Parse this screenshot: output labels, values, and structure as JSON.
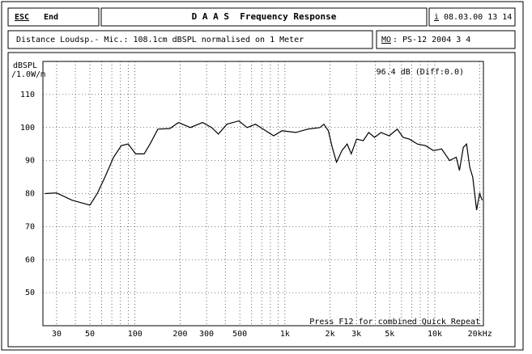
{
  "ui": {
    "esc": "ESC",
    "end": "End",
    "title": "D A A S  Frequency Response",
    "info_key": "i",
    "datetime": "08.03.00 13 14",
    "note": "Distance Loudsp.- Mic.: 108.1cm dBSPL normalised on 1 Meter",
    "model_key": "MO",
    "model": ": PS-12 2004 3 4"
  },
  "chart_data": {
    "type": "line",
    "log_x": true,
    "y_label_1": "dBSPL",
    "y_label_2": "/1.0W/m",
    "annotation": "96.4 dB (Diff:0.0)",
    "footer": "Press F12 for combined Quick Repeat",
    "xlim": [
      24.3,
      21100
    ],
    "ylim": [
      40,
      120
    ],
    "xticks": [
      30,
      50,
      100,
      200,
      300,
      500,
      {
        "value": 1000,
        "label": "1k"
      },
      {
        "value": 2000,
        "label": "2k"
      },
      {
        "value": 3000,
        "label": "3k"
      },
      {
        "value": 5000,
        "label": "5k"
      },
      {
        "value": 10000,
        "label": "10k"
      },
      {
        "value": 20000,
        "label": "20kHz"
      }
    ],
    "xgrid_minor": [
      40,
      60,
      70,
      80,
      90,
      400,
      600,
      700,
      800,
      900,
      4000,
      6000,
      7000,
      8000,
      9000
    ],
    "yticks": [
      50,
      60,
      70,
      80,
      90,
      100,
      110
    ],
    "grid": true,
    "series": [
      {
        "color": "#000000",
        "x": [
          25,
          30,
          38,
          50,
          56,
          63,
          72,
          81,
          90,
          101,
          115,
          126,
          142,
          171,
          195,
          234,
          282,
          325,
          360,
          410,
          493,
          560,
          636,
          716,
          842,
          955,
          1180,
          1420,
          1710,
          1820,
          1950,
          2070,
          2210,
          2400,
          2600,
          2770,
          3010,
          3330,
          3620,
          3960,
          4380,
          4960,
          5620,
          6140,
          6760,
          7660,
          8670,
          9810,
          11100,
          12550,
          13900,
          14600,
          15500,
          16300,
          17100,
          17900,
          19000,
          19900,
          20700
        ],
        "values": [
          80,
          80.2,
          78,
          76.5,
          80,
          85,
          91,
          94.5,
          95,
          92,
          92,
          95,
          99.5,
          99.7,
          101.5,
          100,
          101.5,
          100,
          98,
          101,
          102,
          100,
          101,
          99.5,
          97.5,
          99,
          98.5,
          99.5,
          100,
          101,
          99,
          94,
          89.5,
          93,
          95,
          92,
          96.5,
          96,
          98.5,
          97,
          98.5,
          97.5,
          99.5,
          97,
          96.5,
          95,
          94.5,
          93,
          93.5,
          90,
          91,
          87,
          94,
          95,
          88,
          85,
          75,
          80,
          78
        ]
      }
    ]
  }
}
